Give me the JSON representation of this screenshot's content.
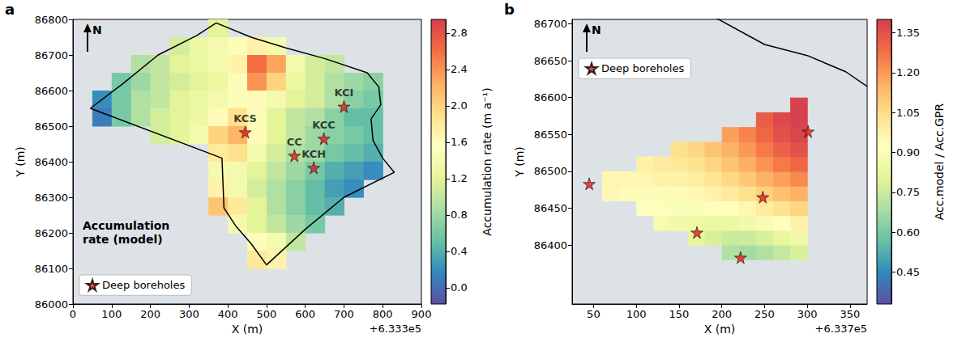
{
  "chart_data": [
    {
      "type": "heatmap",
      "panel": "a",
      "xlabel": "X (m)",
      "ylabel": "Y (m)",
      "x_offset": "+6.333e5",
      "xlim": [
        0,
        900
      ],
      "xticks": [
        0,
        100,
        200,
        300,
        400,
        500,
        600,
        700,
        800,
        900
      ],
      "ylim": [
        86000,
        86800
      ],
      "yticks": [
        86000,
        86100,
        86200,
        86300,
        86400,
        86500,
        86600,
        86700,
        86800
      ],
      "grid": false,
      "north_label": "N",
      "annotation": "Accumulation rate (model)",
      "colorbar": {
        "label": "Accumulation rate (m a⁻¹)",
        "range": [
          -0.18,
          2.95
        ],
        "ticks": [
          {
            "value": 0,
            "label": "0.0"
          },
          0.4,
          0.8,
          1.2,
          1.6,
          {
            "value": 2,
            "label": "2.0"
          },
          2.4,
          2.8
        ]
      },
      "cell_size": 50,
      "cells": [
        [
          375,
          86775,
          1.2
        ],
        [
          275,
          86725,
          1.1
        ],
        [
          325,
          86725,
          1.3
        ],
        [
          375,
          86725,
          1.4
        ],
        [
          425,
          86725,
          1.5
        ],
        [
          475,
          86725,
          1.7
        ],
        [
          525,
          86725,
          1.4
        ],
        [
          175,
          86675,
          0.9
        ],
        [
          225,
          86675,
          1.0
        ],
        [
          275,
          86675,
          1.2
        ],
        [
          325,
          86675,
          1.3
        ],
        [
          375,
          86675,
          1.4
        ],
        [
          425,
          86675,
          1.7
        ],
        [
          475,
          86675,
          2.6
        ],
        [
          525,
          86675,
          2.3
        ],
        [
          575,
          86675,
          1.4
        ],
        [
          625,
          86675,
          1.1
        ],
        [
          675,
          86675,
          1.0
        ],
        [
          125,
          86625,
          0.6
        ],
        [
          175,
          86625,
          0.8
        ],
        [
          225,
          86625,
          1.0
        ],
        [
          275,
          86625,
          1.1
        ],
        [
          325,
          86625,
          1.2
        ],
        [
          375,
          86625,
          1.3
        ],
        [
          425,
          86625,
          1.5
        ],
        [
          475,
          86625,
          2.4
        ],
        [
          525,
          86625,
          2.0
        ],
        [
          575,
          86625,
          1.3
        ],
        [
          625,
          86625,
          1.1
        ],
        [
          675,
          86625,
          0.9
        ],
        [
          725,
          86625,
          0.8
        ],
        [
          775,
          86625,
          0.7
        ],
        [
          75,
          86575,
          0.2
        ],
        [
          125,
          86575,
          0.6
        ],
        [
          175,
          86575,
          0.9
        ],
        [
          225,
          86575,
          1.0
        ],
        [
          275,
          86575,
          1.2
        ],
        [
          325,
          86575,
          1.3
        ],
        [
          375,
          86575,
          1.4
        ],
        [
          425,
          86575,
          1.5
        ],
        [
          475,
          86575,
          1.6
        ],
        [
          525,
          86575,
          1.4
        ],
        [
          575,
          86575,
          1.2
        ],
        [
          625,
          86575,
          1.1
        ],
        [
          675,
          86575,
          0.9
        ],
        [
          725,
          86575,
          0.7
        ],
        [
          775,
          86575,
          0.6
        ],
        [
          75,
          86525,
          0.1
        ],
        [
          125,
          86525,
          0.6
        ],
        [
          175,
          86525,
          0.9
        ],
        [
          225,
          86525,
          1.1
        ],
        [
          275,
          86525,
          1.2
        ],
        [
          325,
          86525,
          1.3
        ],
        [
          375,
          86525,
          1.6
        ],
        [
          425,
          86525,
          1.9
        ],
        [
          475,
          86525,
          1.5
        ],
        [
          525,
          86525,
          1.2
        ],
        [
          575,
          86525,
          1.0
        ],
        [
          625,
          86525,
          0.9
        ],
        [
          675,
          86525,
          0.7
        ],
        [
          725,
          86525,
          0.5
        ],
        [
          775,
          86525,
          0.5
        ],
        [
          225,
          86475,
          1.1
        ],
        [
          275,
          86475,
          1.2
        ],
        [
          325,
          86475,
          1.4
        ],
        [
          375,
          86475,
          2.0
        ],
        [
          425,
          86475,
          2.2
        ],
        [
          475,
          86475,
          1.6
        ],
        [
          525,
          86475,
          1.2
        ],
        [
          575,
          86475,
          1.0
        ],
        [
          625,
          86475,
          0.8
        ],
        [
          675,
          86475,
          0.7
        ],
        [
          725,
          86475,
          0.6
        ],
        [
          775,
          86475,
          0.5
        ],
        [
          375,
          86425,
          1.8
        ],
        [
          425,
          86425,
          1.9
        ],
        [
          475,
          86425,
          1.4
        ],
        [
          525,
          86425,
          1.1
        ],
        [
          575,
          86425,
          0.9
        ],
        [
          625,
          86425,
          0.8
        ],
        [
          675,
          86425,
          0.6
        ],
        [
          725,
          86425,
          0.5
        ],
        [
          775,
          86425,
          0.4
        ],
        [
          375,
          86375,
          1.4
        ],
        [
          425,
          86375,
          1.4
        ],
        [
          475,
          86375,
          1.2
        ],
        [
          525,
          86375,
          1.0
        ],
        [
          575,
          86375,
          0.8
        ],
        [
          625,
          86375,
          0.6
        ],
        [
          675,
          86375,
          0.4
        ],
        [
          725,
          86375,
          0.3
        ],
        [
          775,
          86375,
          0.2
        ],
        [
          375,
          86325,
          1.7
        ],
        [
          425,
          86325,
          1.4
        ],
        [
          475,
          86325,
          1.1
        ],
        [
          525,
          86325,
          0.9
        ],
        [
          575,
          86325,
          0.7
        ],
        [
          625,
          86325,
          0.5
        ],
        [
          675,
          86325,
          0.3
        ],
        [
          725,
          86325,
          0.2
        ],
        [
          375,
          86275,
          2.1
        ],
        [
          425,
          86275,
          1.8
        ],
        [
          475,
          86275,
          1.2
        ],
        [
          525,
          86275,
          0.9
        ],
        [
          575,
          86275,
          0.7
        ],
        [
          625,
          86275,
          0.5
        ],
        [
          675,
          86275,
          0.4
        ],
        [
          425,
          86225,
          1.4
        ],
        [
          475,
          86225,
          1.2
        ],
        [
          525,
          86225,
          1.0
        ],
        [
          575,
          86225,
          0.8
        ],
        [
          625,
          86225,
          0.6
        ],
        [
          475,
          86175,
          1.6
        ],
        [
          525,
          86175,
          1.4
        ],
        [
          575,
          86175,
          1.0
        ],
        [
          475,
          86125,
          1.8
        ],
        [
          525,
          86125,
          1.7
        ]
      ],
      "outline": {
        "x": [
          45,
          130,
          220,
          320,
          370,
          460,
          550,
          650,
          760,
          790,
          795,
          770,
          775,
          800,
          830,
          700,
          600,
          500,
          460,
          420,
          390,
          385,
          45
        ],
        "y": [
          86550,
          86620,
          86700,
          86755,
          86790,
          86750,
          86720,
          86690,
          86650,
          86610,
          86560,
          86520,
          86460,
          86410,
          86370,
          86300,
          86210,
          86110,
          86170,
          86220,
          86270,
          86410,
          86550
        ]
      },
      "series": [
        {
          "name": "Deep boreholes",
          "type": "scatter",
          "color": "#e31a1c",
          "marker": "star",
          "x": [
            445,
            572,
            648,
            700,
            622
          ],
          "y": [
            86483,
            86417,
            86465,
            86555,
            86383
          ],
          "labels": [
            "KCS",
            "CC",
            "KCC",
            "KCI",
            "KCH"
          ]
        }
      ],
      "legend": "lower left"
    },
    {
      "type": "heatmap",
      "panel": "b",
      "xlabel": "X (m)",
      "ylabel": "Y (m)",
      "x_offset": "+6.337e5",
      "xlim": [
        25,
        370
      ],
      "xticks": [
        50,
        100,
        150,
        200,
        250,
        300,
        350
      ],
      "ylim": [
        86320,
        86706
      ],
      "yticks": [
        86400,
        86450,
        86500,
        86550,
        86600,
        86650,
        86700
      ],
      "grid": false,
      "north_label": "N",
      "colorbar": {
        "label": "Acc.model / Acc.GPR",
        "range": [
          0.33,
          1.4
        ],
        "ticks": [
          0.45,
          {
            "value": 0.6,
            "label": "0.60"
          },
          0.75,
          {
            "value": 0.9,
            "label": "0.90"
          },
          1.05,
          {
            "value": 1.2,
            "label": "1.20"
          },
          1.35
        ]
      },
      "cell_size": 20,
      "cells": [
        [
          70,
          86470,
          0.95
        ],
        [
          70,
          86490,
          0.96
        ],
        [
          90,
          86470,
          0.94
        ],
        [
          90,
          86490,
          0.96
        ],
        [
          110,
          86450,
          0.92
        ],
        [
          110,
          86470,
          0.94
        ],
        [
          110,
          86490,
          0.96
        ],
        [
          110,
          86510,
          0.98
        ],
        [
          130,
          86430,
          0.88
        ],
        [
          130,
          86450,
          0.91
        ],
        [
          130,
          86470,
          0.94
        ],
        [
          130,
          86490,
          0.97
        ],
        [
          130,
          86510,
          1.0
        ],
        [
          150,
          86430,
          0.86
        ],
        [
          150,
          86450,
          0.9
        ],
        [
          150,
          86470,
          0.94
        ],
        [
          150,
          86490,
          0.97
        ],
        [
          150,
          86510,
          1.01
        ],
        [
          150,
          86530,
          1.04
        ],
        [
          170,
          86410,
          0.82
        ],
        [
          170,
          86430,
          0.85
        ],
        [
          170,
          86450,
          0.9
        ],
        [
          170,
          86470,
          0.95
        ],
        [
          170,
          86490,
          0.99
        ],
        [
          170,
          86510,
          1.03
        ],
        [
          170,
          86530,
          1.07
        ],
        [
          190,
          86410,
          0.78
        ],
        [
          190,
          86430,
          0.84
        ],
        [
          190,
          86450,
          0.91
        ],
        [
          190,
          86470,
          0.97
        ],
        [
          190,
          86490,
          1.02
        ],
        [
          190,
          86510,
          1.07
        ],
        [
          190,
          86530,
          1.11
        ],
        [
          210,
          86390,
          0.7
        ],
        [
          210,
          86410,
          0.75
        ],
        [
          210,
          86430,
          0.84
        ],
        [
          210,
          86450,
          0.93
        ],
        [
          210,
          86470,
          1.0
        ],
        [
          210,
          86490,
          1.06
        ],
        [
          210,
          86510,
          1.11
        ],
        [
          210,
          86530,
          1.15
        ],
        [
          210,
          86550,
          1.19
        ],
        [
          230,
          86390,
          0.68
        ],
        [
          230,
          86410,
          0.75
        ],
        [
          230,
          86430,
          0.86
        ],
        [
          230,
          86450,
          0.96
        ],
        [
          230,
          86470,
          1.04
        ],
        [
          230,
          86490,
          1.1
        ],
        [
          230,
          86510,
          1.16
        ],
        [
          230,
          86530,
          1.2
        ],
        [
          230,
          86550,
          1.24
        ],
        [
          250,
          86390,
          0.7
        ],
        [
          250,
          86410,
          0.78
        ],
        [
          250,
          86430,
          0.89
        ],
        [
          250,
          86450,
          1.0
        ],
        [
          250,
          86470,
          1.08
        ],
        [
          250,
          86490,
          1.15
        ],
        [
          250,
          86510,
          1.21
        ],
        [
          250,
          86530,
          1.26
        ],
        [
          250,
          86550,
          1.3
        ],
        [
          250,
          86570,
          1.32
        ],
        [
          270,
          86390,
          0.74
        ],
        [
          270,
          86410,
          0.82
        ],
        [
          270,
          86430,
          0.93
        ],
        [
          270,
          86450,
          1.03
        ],
        [
          270,
          86470,
          1.12
        ],
        [
          270,
          86490,
          1.19
        ],
        [
          270,
          86510,
          1.26
        ],
        [
          270,
          86530,
          1.31
        ],
        [
          270,
          86550,
          1.35
        ],
        [
          270,
          86570,
          1.37
        ],
        [
          290,
          86390,
          0.78
        ],
        [
          290,
          86410,
          0.86
        ],
        [
          290,
          86430,
          0.97
        ],
        [
          290,
          86450,
          1.07
        ],
        [
          290,
          86470,
          1.15
        ],
        [
          290,
          86490,
          1.23
        ],
        [
          290,
          86510,
          1.3
        ],
        [
          290,
          86530,
          1.35
        ],
        [
          290,
          86550,
          1.38
        ],
        [
          290,
          86570,
          1.39
        ],
        [
          290,
          86590,
          1.39
        ]
      ],
      "outline": {
        "x": [
          190,
          250,
          300,
          345,
          370
        ],
        "y": [
          86710,
          86672,
          86657,
          86635,
          86615
        ]
      },
      "series": [
        {
          "name": "Deep boreholes",
          "type": "scatter",
          "color": "#e31a1c",
          "marker": "star",
          "x": [
            45,
            171,
            248,
            301,
            222
          ],
          "y": [
            86483,
            86417,
            86465,
            86554,
            86383
          ]
        }
      ],
      "legend": "upper left"
    }
  ]
}
